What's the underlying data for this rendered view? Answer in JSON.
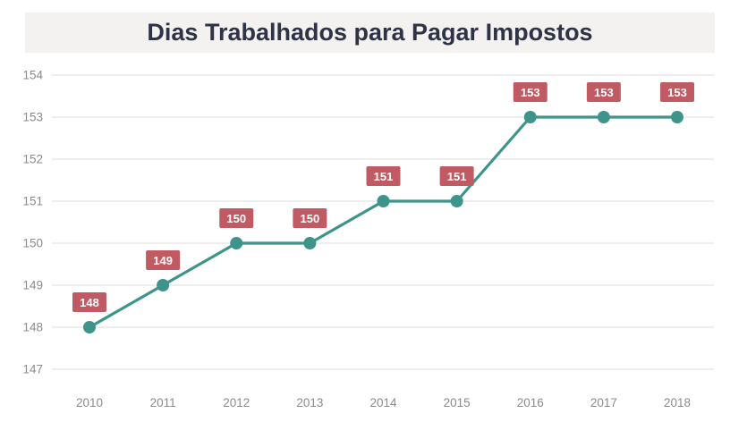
{
  "header": {
    "title": "Dias Trabalhados para Pagar Impostos",
    "background": "#f4f2f0",
    "text_color": "#2e3345"
  },
  "chart_data": {
    "type": "line",
    "title": "Dias Trabalhados para Pagar Impostos",
    "categories": [
      "2010",
      "2011",
      "2012",
      "2013",
      "2014",
      "2015",
      "2016",
      "2017",
      "2018"
    ],
    "values": [
      148,
      149,
      150,
      150,
      151,
      151,
      153,
      153,
      153
    ],
    "point_labels": [
      "148",
      "149",
      "150",
      "150",
      "151",
      "151",
      "153",
      "153",
      "153"
    ],
    "xlabel": "",
    "ylabel": "",
    "ylim": [
      147,
      154
    ],
    "yticks": [
      147,
      148,
      149,
      150,
      151,
      152,
      153,
      154
    ],
    "grid": "horizontal",
    "legend": "none",
    "colors": {
      "line": "#3e948b",
      "point": "#3e948b",
      "label_badge": "#c05a63",
      "label_text": "#ffffff",
      "gridline": "#dedede",
      "axis_text": "#8b8b8b"
    }
  }
}
